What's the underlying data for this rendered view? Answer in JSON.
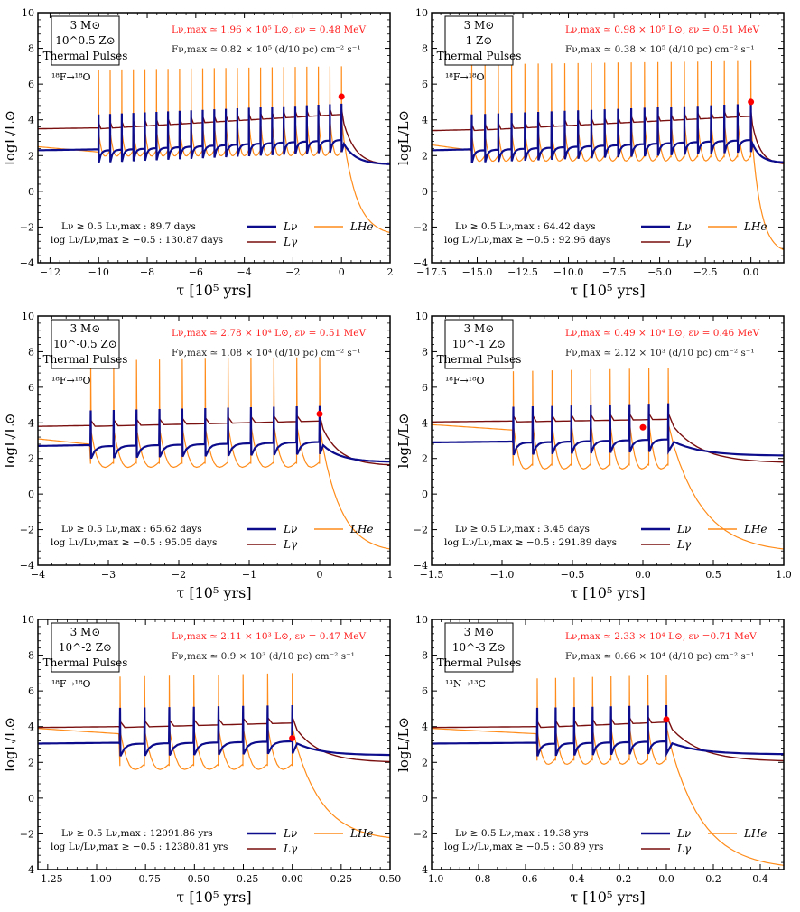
{
  "figure": {
    "y_label": "logL/L⊙",
    "x_label": "τ [10⁵ yrs]",
    "legend": {
      "l_nu": "Lν",
      "l_gamma": "Lγ",
      "l_he": "LHe"
    },
    "colors": {
      "l_nu": "#0c0c8c",
      "l_gamma": "#7a0f0f",
      "l_he": "#ff8c1a",
      "marker": "#ff0000",
      "red_text": "#ff2020"
    }
  },
  "chart_data": [
    {
      "type": "line",
      "title_box": [
        "3 M⊙",
        "10^0.5 Z⊙",
        "Thermal Pulses"
      ],
      "reaction": "¹⁸F→¹⁸O",
      "lmax_text": "Lν,max ≃ 1.96 × 10⁵ L⊙, εν = 0.48 MeV",
      "flux_text": "Fν,max ≃ 0.82 × 10⁵ (d/10 pc) cm⁻² s⁻¹",
      "dur1_text": "Lν ≥ 0.5 Lν,max : 89.7 days",
      "dur2_text": "log Lν/Lν,max ≥ −0.5 : 130.87 days",
      "xlabel": "τ [10⁵ yrs]",
      "ylabel": "logL/L⊙",
      "xlim": [
        -12.5,
        2
      ],
      "ylim": [
        -4,
        10
      ],
      "xticks": [
        -12,
        -10,
        -8,
        -6,
        -4,
        -2,
        0,
        2
      ],
      "yticks": [
        -4,
        -2,
        0,
        2,
        4,
        6,
        8,
        10
      ],
      "pulses": {
        "t_first": -10.0,
        "t_last": 0.0,
        "count": 22,
        "base_nu": 2.3,
        "base_gamma": 3.5,
        "nu_end": 2.9,
        "gamma_end": 4.3,
        "he_start": 2.5,
        "he_min": 1.7,
        "he_peak": 7.0,
        "he_tail": -2.5,
        "end_nu": 1.5,
        "end_gamma": 1.45
      },
      "peak": {
        "x": 0.0,
        "y": 5.3
      }
    },
    {
      "type": "line",
      "title_box": [
        "3 M⊙",
        "1 Z⊙",
        "Thermal Pulses"
      ],
      "reaction": "¹⁸F→¹⁸O",
      "lmax_text": "Lν,max ≃ 0.98 × 10⁵ L⊙, εν = 0.51 MeV",
      "flux_text": "Fν,max ≃ 0.38 × 10⁵ (d/10 pc) cm⁻² s⁻¹",
      "dur1_text": "Lν ≥ 0.5 Lν,max : 64.42 days",
      "dur2_text": "log Lν/Lν,max ≥ −0.5 : 92.96 days",
      "xlabel": "τ [10⁵ yrs]",
      "ylabel": "logL/L⊙",
      "xlim": [
        -17.5,
        1.8
      ],
      "ylim": [
        -4,
        10
      ],
      "xticks": [
        -17.5,
        -15.0,
        -12.5,
        -10.0,
        -7.5,
        -5.0,
        -2.5,
        0.0
      ],
      "yticks": [
        -4,
        -2,
        0,
        2,
        4,
        6,
        8,
        10
      ],
      "pulses": {
        "t_first": -15.3,
        "t_last": 0.0,
        "count": 22,
        "base_nu": 2.3,
        "base_gamma": 3.4,
        "nu_end": 2.9,
        "gamma_end": 4.2,
        "he_start": 2.6,
        "he_min": 1.4,
        "he_peak": 7.3,
        "he_tail": -3.5,
        "end_nu": 1.6,
        "end_gamma": 1.5
      },
      "peak": {
        "x": 0.0,
        "y": 5.0
      }
    },
    {
      "type": "line",
      "title_box": [
        "3 M⊙",
        "10^-0.5 Z⊙",
        "Thermal Pulses"
      ],
      "reaction": "¹⁸F→¹⁸O",
      "lmax_text": "Lν,max ≃ 2.78 × 10⁴ L⊙, εν = 0.51 MeV",
      "flux_text": "Fν,max ≃ 1.08 × 10⁴ (d/10 pc) cm⁻² s⁻¹",
      "dur1_text": "Lν ≥ 0.5 Lν,max : 65.62 days",
      "dur2_text": "log Lν/Lν,max ≥ −0.5 : 95.05 days",
      "xlabel": "τ [10⁵ yrs]",
      "ylabel": "logL/L⊙",
      "xlim": [
        -4,
        1
      ],
      "ylim": [
        -4,
        10
      ],
      "xticks": [
        -4,
        -3,
        -2,
        -1,
        0,
        1
      ],
      "yticks": [
        -4,
        -2,
        0,
        2,
        4,
        6,
        8,
        10
      ],
      "pulses": {
        "t_first": -3.25,
        "t_last": 0.0,
        "count": 11,
        "base_nu": 2.7,
        "base_gamma": 3.8,
        "nu_end": 2.95,
        "gamma_end": 4.1,
        "he_start": 3.1,
        "he_min": 1.2,
        "he_peak": 7.7,
        "he_tail": -3.3,
        "end_nu": 1.8,
        "end_gamma": 1.6
      },
      "peak": {
        "x": 0.0,
        "y": 4.5
      }
    },
    {
      "type": "line",
      "title_box": [
        "3 M⊙",
        "10^-1 Z⊙",
        "Thermal Pulses"
      ],
      "reaction": "¹⁸F→¹⁸O",
      "lmax_text": "Lν,max ≃ 0.49 × 10⁴ L⊙, εν = 0.46 MeV",
      "flux_text": "Fν,max ≃ 2.12 × 10³ (d/10 pc) cm⁻² s⁻¹",
      "dur1_text": "Lν ≥ 0.5 Lν,max : 3.45 days",
      "dur2_text": "log Lν/Lν,max ≥ −0.5 : 291.89 days",
      "xlabel": "τ [10⁵ yrs]",
      "ylabel": "logL/L⊙",
      "xlim": [
        -1.5,
        1.0
      ],
      "ylim": [
        -4,
        10
      ],
      "xticks": [
        -1.5,
        -1.0,
        -0.5,
        0.0,
        0.5,
        1.0
      ],
      "yticks": [
        -4,
        -2,
        0,
        2,
        4,
        6,
        8,
        10
      ],
      "pulses": {
        "t_first": -0.92,
        "t_last": 0.18,
        "count": 9,
        "base_nu": 2.9,
        "base_gamma": 4.05,
        "nu_end": 3.1,
        "gamma_end": 4.2,
        "he_start": 3.9,
        "he_min": 1.1,
        "he_peak": 7.1,
        "he_tail": -3.3,
        "end_nu": 2.15,
        "end_gamma": 1.75
      },
      "peak": {
        "x": 0.0,
        "y": 3.75
      }
    },
    {
      "type": "line",
      "title_box": [
        "3 M⊙",
        "10^-2 Z⊙",
        "Thermal Pulses"
      ],
      "reaction": "¹⁸F→¹⁸O",
      "lmax_text": "Lν,max ≃ 2.11 × 10³ L⊙, εν = 0.47 MeV",
      "flux_text": "Fν,max ≃ 0.9 × 10³ (d/10 pc) cm⁻² s⁻¹",
      "dur1_text": "Lν ≥ 0.5 Lν,max : 12091.86 yrs",
      "dur2_text": "log Lν/Lν,max ≥ −0.5 : 12380.81 yrs",
      "xlabel": "τ [10⁵ yrs]",
      "ylabel": "logL/L⊙",
      "xlim": [
        -1.3,
        0.5
      ],
      "ylim": [
        -4,
        10
      ],
      "xticks": [
        -1.25,
        -1.0,
        -0.75,
        -0.5,
        -0.25,
        0.0,
        0.25,
        0.5
      ],
      "yticks": [
        -4,
        -2,
        0,
        2,
        4,
        6,
        8,
        10
      ],
      "pulses": {
        "t_first": -0.88,
        "t_last": 0.0,
        "count": 8,
        "base_nu": 3.05,
        "base_gamma": 3.95,
        "nu_end": 3.2,
        "gamma_end": 4.2,
        "he_start": 3.9,
        "he_min": 1.3,
        "he_peak": 7.0,
        "he_tail": -2.4,
        "end_nu": 2.4,
        "end_gamma": 2.0
      },
      "peak": {
        "x": 0.0,
        "y": 3.35
      }
    },
    {
      "type": "line",
      "title_box": [
        "3 M⊙",
        "10^-3 Z⊙",
        "Thermal Pulses"
      ],
      "reaction": "¹³N→¹³C",
      "lmax_text": "Lν,max ≃ 2.33 × 10⁴ L⊙, εν =0.71 MeV",
      "flux_text": "Fν,max ≃ 0.66 × 10⁴ (d/10 pc) cm⁻² s⁻¹",
      "dur1_text": "Lν ≥ 0.5 Lν,max : 19.38 yrs",
      "dur2_text": "log Lν/Lν,max ≥ −0.5 : 30.89 yrs",
      "xlabel": "τ [10⁵ yrs]",
      "ylabel": "logL/L⊙",
      "xlim": [
        -1.0,
        0.5
      ],
      "ylim": [
        -4,
        10
      ],
      "xticks": [
        -1.0,
        -0.8,
        -0.6,
        -0.4,
        -0.2,
        0.0,
        0.2,
        0.4
      ],
      "yticks": [
        -4,
        -2,
        0,
        2,
        4,
        6,
        8,
        10
      ],
      "pulses": {
        "t_first": -0.55,
        "t_last": 0.0,
        "count": 8,
        "base_nu": 3.05,
        "base_gamma": 3.95,
        "nu_end": 3.2,
        "gamma_end": 4.25,
        "he_start": 3.9,
        "he_min": 1.6,
        "he_peak": 6.9,
        "he_tail": -4.0,
        "end_nu": 2.45,
        "end_gamma": 2.05
      },
      "peak": {
        "x": 0.0,
        "y": 4.4
      }
    }
  ]
}
